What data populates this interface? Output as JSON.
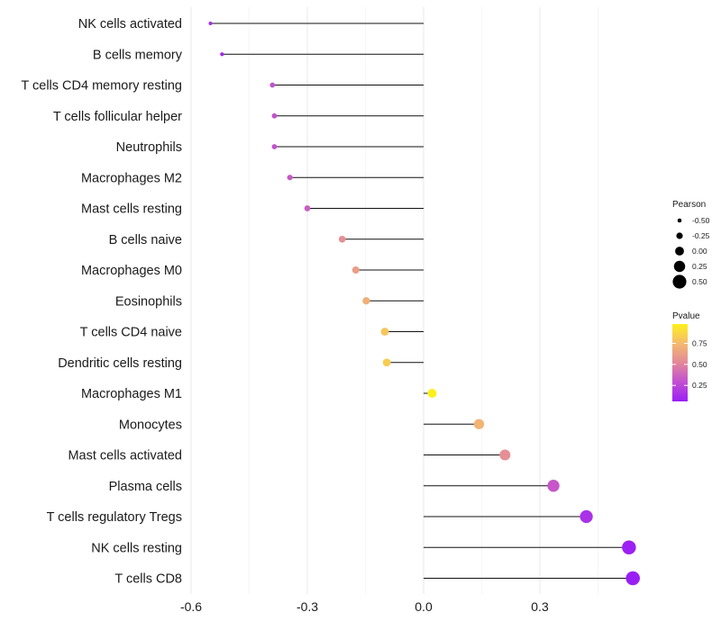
{
  "chart_data": {
    "type": "lollipop",
    "title": "",
    "xlabel": "",
    "ylabel": "",
    "xlim": [
      -0.6,
      0.55
    ],
    "xticks": [
      -0.6,
      -0.3,
      0.0,
      0.3
    ],
    "xtick_labels": [
      "-0.6",
      "-0.3",
      "0.0",
      "0.3"
    ],
    "grid": true,
    "categories": [
      "NK cells activated",
      "B cells memory",
      "T cells CD4 memory resting",
      "T cells follicular helper",
      "Neutrophils",
      "Macrophages M2",
      "Mast cells resting",
      "B cells naive",
      "Macrophages M0",
      "Eosinophils",
      "T cells CD4 naive",
      "Dendritic cells resting",
      "Macrophages M1",
      "Monocytes",
      "Mast cells activated",
      "Plasma cells",
      "T cells regulatory  Tregs",
      "NK cells resting",
      "T cells CD8"
    ],
    "pearson": [
      -0.55,
      -0.52,
      -0.39,
      -0.385,
      -0.385,
      -0.345,
      -0.3,
      -0.21,
      -0.175,
      -0.148,
      -0.1,
      -0.095,
      0.022,
      0.143,
      0.21,
      0.335,
      0.42,
      0.53,
      0.54
    ],
    "pvalue": [
      0.12,
      0.1,
      0.3,
      0.3,
      0.3,
      0.33,
      0.35,
      0.55,
      0.62,
      0.7,
      0.8,
      0.83,
      0.98,
      0.72,
      0.55,
      0.32,
      0.15,
      0.07,
      0.06
    ],
    "legend_size": {
      "title": "Pearson",
      "labels": [
        "-0.50",
        "-0.25",
        "0.00",
        "0.25",
        "0.50"
      ],
      "values": [
        -0.5,
        -0.25,
        0.0,
        0.25,
        0.5
      ]
    },
    "legend_color": {
      "title": "Pvalue",
      "labels": [
        "0.75",
        "0.50",
        "0.25"
      ],
      "values": [
        0.75,
        0.5,
        0.25
      ],
      "range": [
        0.06,
        0.98
      ],
      "colors": [
        "#9a1ff5",
        "#c24fd1",
        "#e2889a",
        "#f4ba6e",
        "#fdf01d"
      ]
    },
    "legend_placement": "right"
  }
}
